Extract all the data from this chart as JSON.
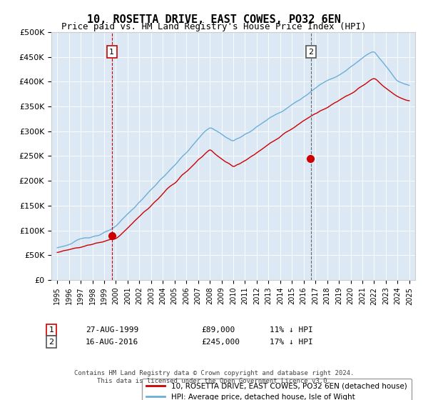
{
  "title": "10, ROSETTA DRIVE, EAST COWES, PO32 6EN",
  "subtitle": "Price paid vs. HM Land Registry's House Price Index (HPI)",
  "legend_line1": "10, ROSETTA DRIVE, EAST COWES, PO32 6EN (detached house)",
  "legend_line2": "HPI: Average price, detached house, Isle of Wight",
  "annotation1_label": "1",
  "annotation1_date": "27-AUG-1999",
  "annotation1_price": "£89,000",
  "annotation1_hpi": "11% ↓ HPI",
  "annotation1_year": 1999.65,
  "annotation1_value": 89000,
  "annotation2_label": "2",
  "annotation2_date": "16-AUG-2016",
  "annotation2_price": "£245,000",
  "annotation2_hpi": "17% ↓ HPI",
  "annotation2_year": 2016.62,
  "annotation2_value": 245000,
  "footer": "Contains HM Land Registry data © Crown copyright and database right 2024.\nThis data is licensed under the Open Government Licence v3.0.",
  "ylim": [
    0,
    500000
  ],
  "yticks": [
    0,
    50000,
    100000,
    150000,
    200000,
    250000,
    300000,
    350000,
    400000,
    450000,
    500000
  ],
  "xlim_start": 1994.5,
  "xlim_end": 2025.5,
  "bg_color": "#dce9f5",
  "plot_bg_color": "#dce9f5",
  "hpi_color": "#6baed6",
  "price_color": "#cc0000",
  "vline1_color": "#cc0000",
  "vline2_color": "#666666",
  "box_color": "#cc0000"
}
